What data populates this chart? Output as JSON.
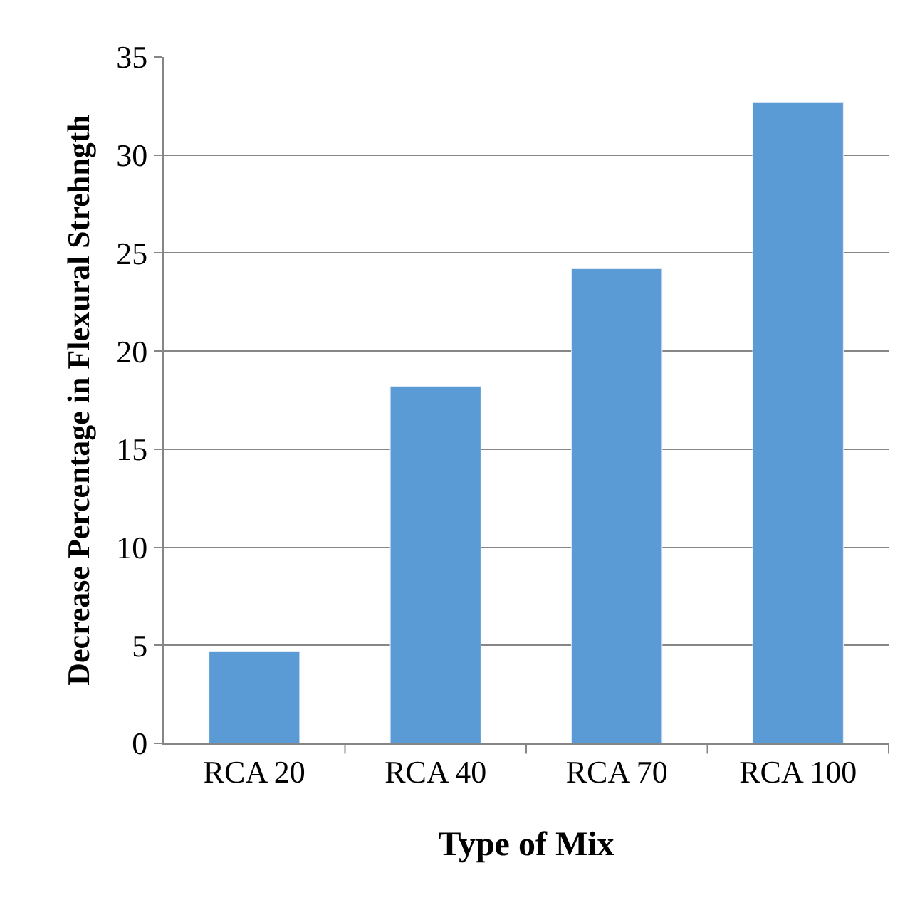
{
  "chart_data": {
    "type": "bar",
    "xlabel": "Type of Mix",
    "ylabel": "Decrease Percentage in Flexural Strehngth",
    "categories": [
      "RCA 20",
      "RCA 40",
      "RCA 70",
      "RCA 100"
    ],
    "values": [
      4.7,
      18.2,
      24.2,
      32.7
    ],
    "color": "#5b9bd5",
    "ylim": [
      0,
      35
    ],
    "yticks": [
      0,
      5,
      10,
      15,
      20,
      25,
      30,
      35
    ],
    "grid": "y",
    "legend": false
  }
}
